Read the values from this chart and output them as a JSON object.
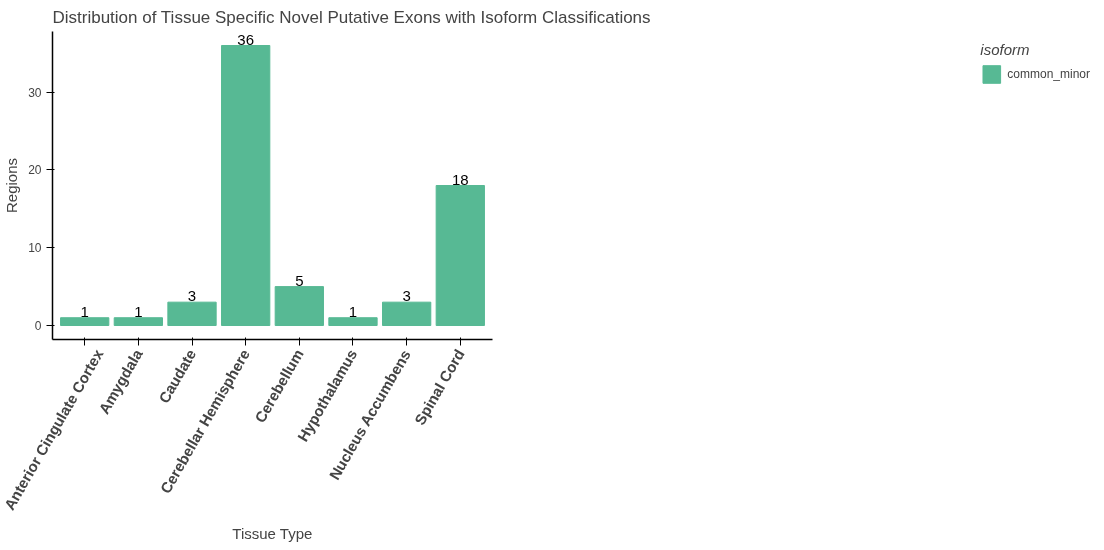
{
  "chart_data": {
    "type": "bar",
    "title": "Distribution of Tissue Specific Novel Putative Exons with Isoform Classifications",
    "xlabel": "Tissue Type",
    "ylabel": "Regions",
    "legend_title": "isoform",
    "categories": [
      "Anterior Cingulate Cortex",
      "Amygdala",
      "Caudate",
      "Cerebellar Hemisphere",
      "Cerebellum",
      "Hypothalamus",
      "Nucleus Accumbens",
      "Spinal Cord"
    ],
    "series": [
      {
        "name": "common_minor",
        "color": "#57b994",
        "values": [
          1,
          1,
          3,
          36,
          5,
          1,
          3,
          18
        ]
      }
    ],
    "ylim": [
      -1.8,
      37.8
    ],
    "yticks": [
      0,
      10,
      20,
      30
    ],
    "grid": false,
    "legend": "right",
    "data_labels": true
  }
}
